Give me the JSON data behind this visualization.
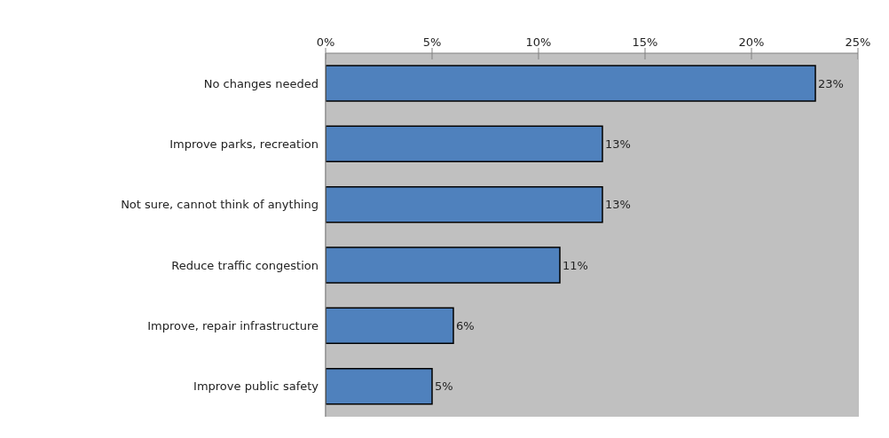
{
  "chart_data": {
    "type": "bar",
    "orientation": "horizontal",
    "categories": [
      "No changes needed",
      "Improve parks, recreation",
      "Not sure, cannot think of anything",
      "Reduce traffic congestion",
      "Improve, repair infrastructure",
      "Improve public safety"
    ],
    "values": [
      23,
      13,
      13,
      11,
      6,
      5
    ],
    "value_labels": [
      "23%",
      "13%",
      "13%",
      "11%",
      "6%",
      "5%"
    ],
    "color": "#4f81bd",
    "xlim": [
      0,
      25
    ],
    "xticks": [
      {
        "value": 0,
        "label": "0%"
      },
      {
        "value": 5,
        "label": "5%"
      },
      {
        "value": 10,
        "label": "10%"
      },
      {
        "value": 15,
        "label": "15%"
      },
      {
        "value": 20,
        "label": "20%"
      },
      {
        "value": 25,
        "label": "25%"
      }
    ],
    "grid": "x"
  }
}
